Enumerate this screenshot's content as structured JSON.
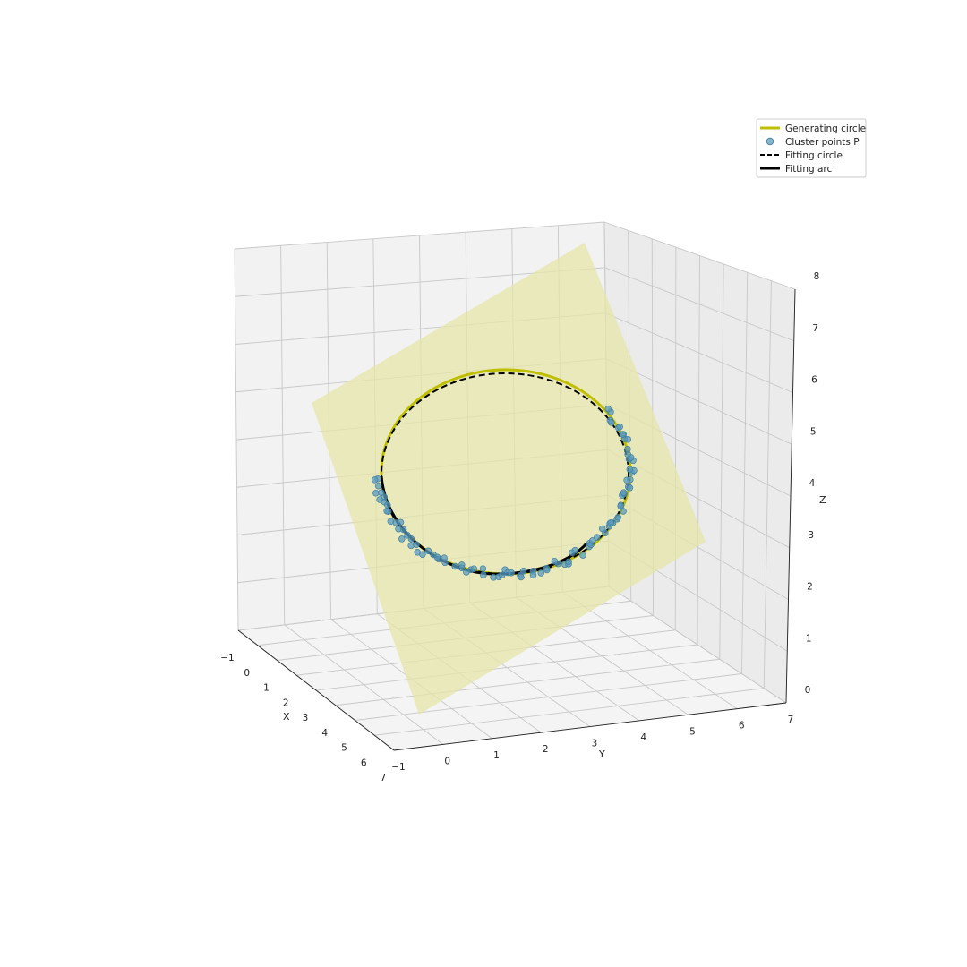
{
  "chart_data": {
    "type": "scatter",
    "projection": "3d",
    "title": "",
    "axes": {
      "x": {
        "label": "X",
        "ticks": [
          "−1",
          "0",
          "1",
          "2",
          "3",
          "4",
          "5",
          "6",
          "7"
        ],
        "lim": [
          -1,
          7
        ]
      },
      "y": {
        "label": "Y",
        "ticks": [
          "−1",
          "0",
          "1",
          "2",
          "3",
          "4",
          "5",
          "6",
          "7"
        ],
        "lim": [
          -1,
          7
        ]
      },
      "z": {
        "label": "Z",
        "ticks": [
          "0",
          "1",
          "2",
          "3",
          "4",
          "5",
          "6",
          "7",
          "8"
        ],
        "lim": [
          0,
          8
        ]
      }
    },
    "grid": true,
    "legend": {
      "placement": "top-right",
      "entries": [
        {
          "label": "Generating circle",
          "style": "line",
          "color": "#bfbf00"
        },
        {
          "label": "Cluster points P",
          "style": "marker",
          "color": "#5b9bbd"
        },
        {
          "label": "Fitting circle",
          "style": "dashed-line",
          "color": "#000000"
        },
        {
          "label": "Fitting arc",
          "style": "thick-line",
          "color": "#000000"
        }
      ]
    },
    "series": [
      {
        "name": "Generating circle",
        "kind": "circle",
        "center": [
          3,
          3,
          4.5
        ],
        "radius": 3,
        "color": "#bfbf00"
      },
      {
        "name": "Fitting circle",
        "kind": "circle",
        "center": [
          3,
          3,
          4.45
        ],
        "radius": 2.95,
        "color": "#000000"
      },
      {
        "name": "Fitting arc",
        "kind": "arc",
        "color": "#000000"
      },
      {
        "name": "Cluster points P",
        "kind": "points",
        "count": 100,
        "color": "#5b9bbd"
      }
    ],
    "plane_color": "#e5e5a8"
  }
}
